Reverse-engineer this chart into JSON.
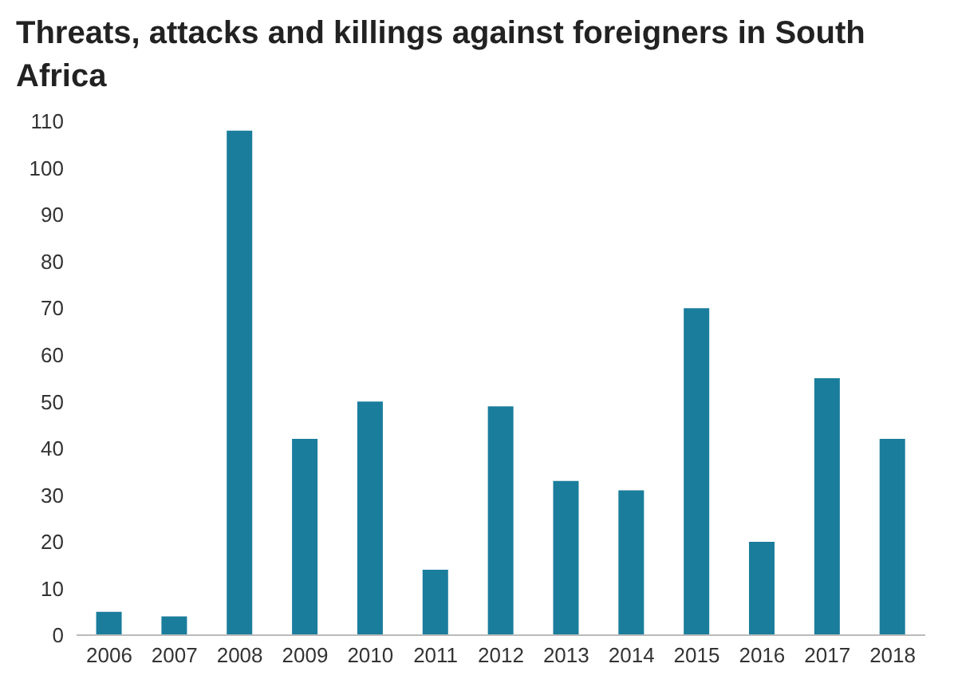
{
  "chart_data": {
    "type": "bar",
    "title": "Threats, attacks and killings against foreigners in South Africa",
    "categories": [
      "2006",
      "2007",
      "2008",
      "2009",
      "2010",
      "2011",
      "2012",
      "2013",
      "2014",
      "2015",
      "2016",
      "2017",
      "2018"
    ],
    "values": [
      5,
      4,
      108,
      42,
      50,
      14,
      49,
      33,
      31,
      70,
      20,
      55,
      42
    ],
    "color": "#1a7d9c",
    "ylim": [
      0,
      110
    ],
    "yticks": [
      0,
      10,
      20,
      30,
      40,
      50,
      60,
      70,
      80,
      90,
      100,
      110
    ],
    "grid": false,
    "legend": false
  }
}
